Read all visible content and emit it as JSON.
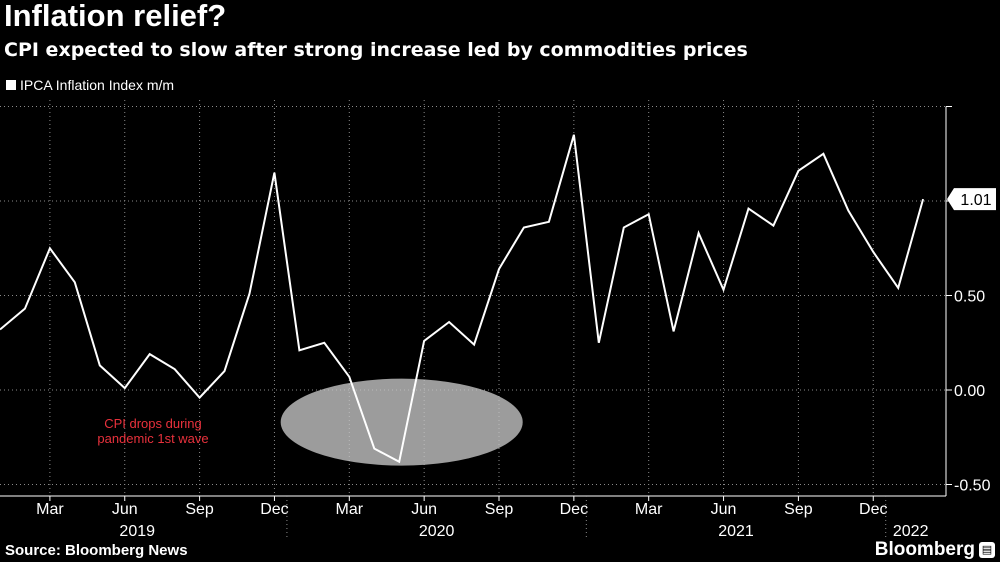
{
  "header": {
    "title": "Inflation relief?",
    "subtitle": "CPI expected to slow after strong increase led by commodities prices"
  },
  "footer": {
    "source": "Source: Bloomberg News",
    "brand": "Bloomberg"
  },
  "colors": {
    "background": "#000000",
    "line": "#ffffff",
    "annotation": "#e8313c",
    "ellipse_fill": "#c8c8c8"
  },
  "chart_data": {
    "type": "line",
    "title": "Inflation relief?",
    "subtitle": "CPI expected to slow after strong increase led by commodities prices",
    "series": [
      {
        "name": "IPCA Inflation Index m/m",
        "x": [
          "2019-01",
          "2019-02",
          "2019-03",
          "2019-04",
          "2019-05",
          "2019-06",
          "2019-07",
          "2019-08",
          "2019-09",
          "2019-10",
          "2019-11",
          "2019-12",
          "2020-01",
          "2020-02",
          "2020-03",
          "2020-04",
          "2020-05",
          "2020-06",
          "2020-07",
          "2020-08",
          "2020-09",
          "2020-10",
          "2020-11",
          "2020-12",
          "2021-01",
          "2021-02",
          "2021-03",
          "2021-04",
          "2021-05",
          "2021-06",
          "2021-07",
          "2021-08",
          "2021-09",
          "2021-10",
          "2021-11",
          "2021-12",
          "2022-01",
          "2022-02"
        ],
        "values": [
          0.32,
          0.43,
          0.75,
          0.57,
          0.13,
          0.01,
          0.19,
          0.11,
          -0.04,
          0.1,
          0.51,
          1.15,
          0.21,
          0.25,
          0.07,
          -0.31,
          -0.38,
          0.26,
          0.36,
          0.24,
          0.64,
          0.86,
          0.89,
          1.35,
          0.25,
          0.86,
          0.93,
          0.31,
          0.83,
          0.53,
          0.96,
          0.87,
          1.16,
          1.25,
          0.95,
          0.73,
          0.54,
          1.01
        ]
      }
    ],
    "last_value_label": "1.01",
    "ylim": [
      -0.5,
      1.5
    ],
    "yticks": [
      -0.5,
      0.0,
      0.5,
      1.0,
      1.5
    ],
    "ytick_labels": [
      "-0.50",
      "0.00",
      "0.50",
      "",
      ""
    ],
    "xtick_labels": [
      {
        "label": "Mar",
        "index": 2
      },
      {
        "label": "Jun",
        "index": 5
      },
      {
        "label": "Sep",
        "index": 8
      },
      {
        "label": "Dec",
        "index": 11
      },
      {
        "label": "Mar",
        "index": 14
      },
      {
        "label": "Jun",
        "index": 17
      },
      {
        "label": "Sep",
        "index": 20
      },
      {
        "label": "Dec",
        "index": 23
      },
      {
        "label": "Mar",
        "index": 26
      },
      {
        "label": "Jun",
        "index": 29
      },
      {
        "label": "Sep",
        "index": 32
      },
      {
        "label": "Dec",
        "index": 35
      }
    ],
    "year_labels": [
      {
        "label": "2019",
        "index": 5.5
      },
      {
        "label": "2020",
        "index": 17.5
      },
      {
        "label": "2021",
        "index": 29.5
      },
      {
        "label": "2022",
        "index": 36.5
      }
    ],
    "year_dividers": [
      11.5,
      23.5,
      35.5
    ],
    "annotation": {
      "lines": [
        "CPI drops during",
        "pandemic 1st wave"
      ],
      "center_index": 16.1,
      "center_value": -0.17,
      "radius_months": 4.85,
      "radius_value": 0.23
    },
    "xlabel": "",
    "ylabel": "",
    "legend": "top-left"
  }
}
